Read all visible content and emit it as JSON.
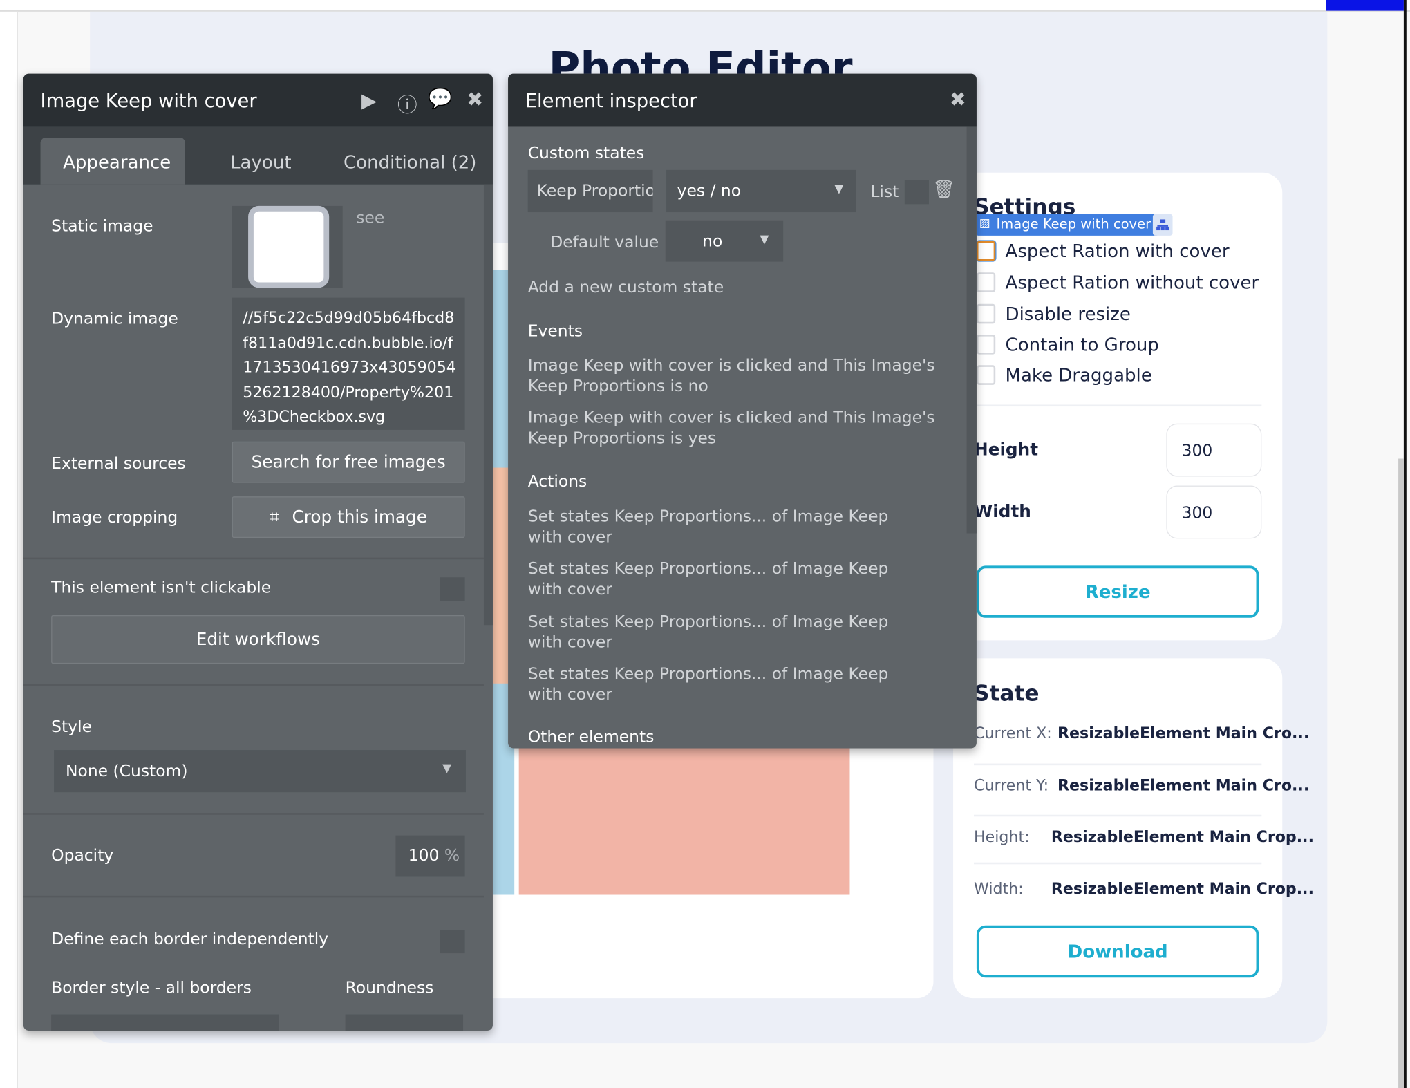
{
  "page": {
    "title": "Photo Editor"
  },
  "settings": {
    "heading": "Settings",
    "selected_tag": "Image Keep with cover",
    "options": [
      "Aspect Ration with cover",
      "Aspect Ration without cover",
      "Disable resize",
      "Contain to Group",
      "Make Draggable"
    ],
    "height_label": "Height",
    "height_value": "300",
    "width_label": "Width",
    "width_value": "300",
    "resize_label": "Resize"
  },
  "state": {
    "heading": "State",
    "rows": [
      {
        "label": "Current X:",
        "value": "ResizableElement Main Cro..."
      },
      {
        "label": "Current Y:",
        "value": "ResizableElement Main Cro..."
      },
      {
        "label": "Height:",
        "value": "ResizableElement Main Crop..."
      },
      {
        "label": "Width:",
        "value": "ResizableElement Main Crop..."
      }
    ],
    "download_label": "Download"
  },
  "property_editor": {
    "title": "Image Keep with cover",
    "tabs": [
      "Appearance",
      "Layout",
      "Conditional (2)"
    ],
    "active_tab": "Appearance",
    "static_image_label": "Static image",
    "see_label": "see",
    "dynamic_image_label": "Dynamic image",
    "dynamic_image_lines": [
      "//5f5c22c5d99d05b64fbcd8",
      "f811a0d91c.cdn.bubble.io/f",
      "1713530416973x43059054",
      "5262128400/Property%201",
      "%3DCheckbox.svg"
    ],
    "external_sources_label": "External sources",
    "search_images_label": "Search for free images",
    "image_cropping_label": "Image cropping",
    "crop_label": "Crop this image",
    "not_clickable_label": "This element isn't clickable",
    "edit_workflows_label": "Edit workflows",
    "style_label": "Style",
    "style_value": "None (Custom)",
    "opacity_label": "Opacity",
    "opacity_value": "100",
    "opacity_unit": "%",
    "border_independent_label": "Define each border independently",
    "border_style_label": "Border style - all borders",
    "roundness_label": "Roundness"
  },
  "inspector": {
    "title": "Element inspector",
    "custom_states_label": "Custom states",
    "state_name": "Keep Proportio",
    "state_type": "yes / no",
    "list_label": "List",
    "default_value_label": "Default value",
    "default_value": "no",
    "add_state_label": "Add a new custom state",
    "events_label": "Events",
    "events": [
      "Image Keep with cover is clicked and This Image's Keep Proportions is no",
      "Image Keep with cover is clicked and This Image's Keep Proportions is yes"
    ],
    "actions_label": "Actions",
    "actions": [
      "Set states Keep Proportions... of Image Keep with cover",
      "Set states Keep Proportions... of Image Keep with cover",
      "Set states Keep Proportions... of Image Keep with cover",
      "Set states Keep Proportions... of Image Keep with cover"
    ],
    "other_elements_label": "Other elements"
  },
  "colors": {
    "accent": "#1eaecf",
    "tag": "#3f7ee0",
    "panel": "#5f6468",
    "panel_header": "#2a2f33"
  }
}
